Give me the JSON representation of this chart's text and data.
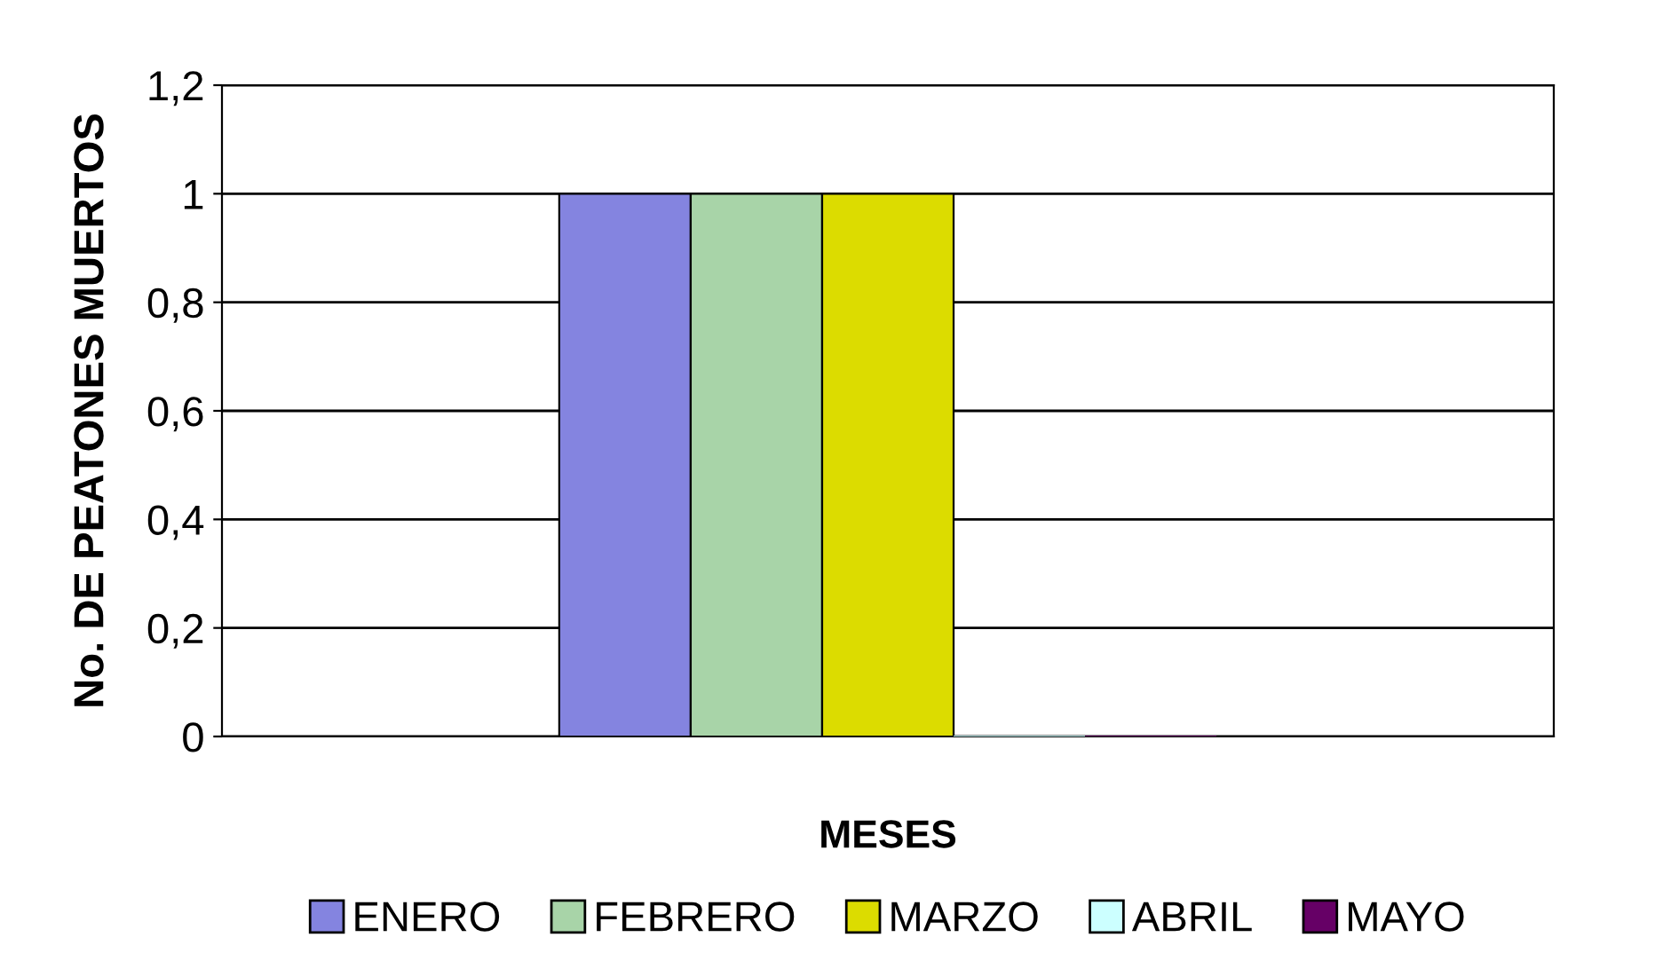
{
  "chart_data": {
    "type": "bar",
    "xlabel": "MESES",
    "ylabel": "No. DE PEATONES MUERTOS",
    "categories": [
      null
    ],
    "series": [
      {
        "name": "ENERO",
        "color": "#8484e0",
        "values": [
          1
        ]
      },
      {
        "name": "FEBRERO",
        "color": "#a8d4a8",
        "values": [
          1
        ]
      },
      {
        "name": "MARZO",
        "color": "#dcdc00",
        "values": [
          1
        ]
      },
      {
        "name": "ABRIL",
        "color": "#ccffff",
        "values": [
          0
        ]
      },
      {
        "name": "MAYO",
        "color": "#660066",
        "values": [
          0
        ]
      }
    ],
    "ylim": [
      0,
      1.2
    ],
    "yticks": [
      0,
      {
        "value": 0.2,
        "label": "0,2"
      },
      {
        "value": 0.4,
        "label": "0,4"
      },
      {
        "value": 0.6,
        "label": "0,6"
      },
      {
        "value": 0.8,
        "label": "0,8"
      },
      1,
      {
        "value": 1.2,
        "label": "1,2"
      }
    ],
    "grid": "y",
    "legend": "bottom"
  }
}
